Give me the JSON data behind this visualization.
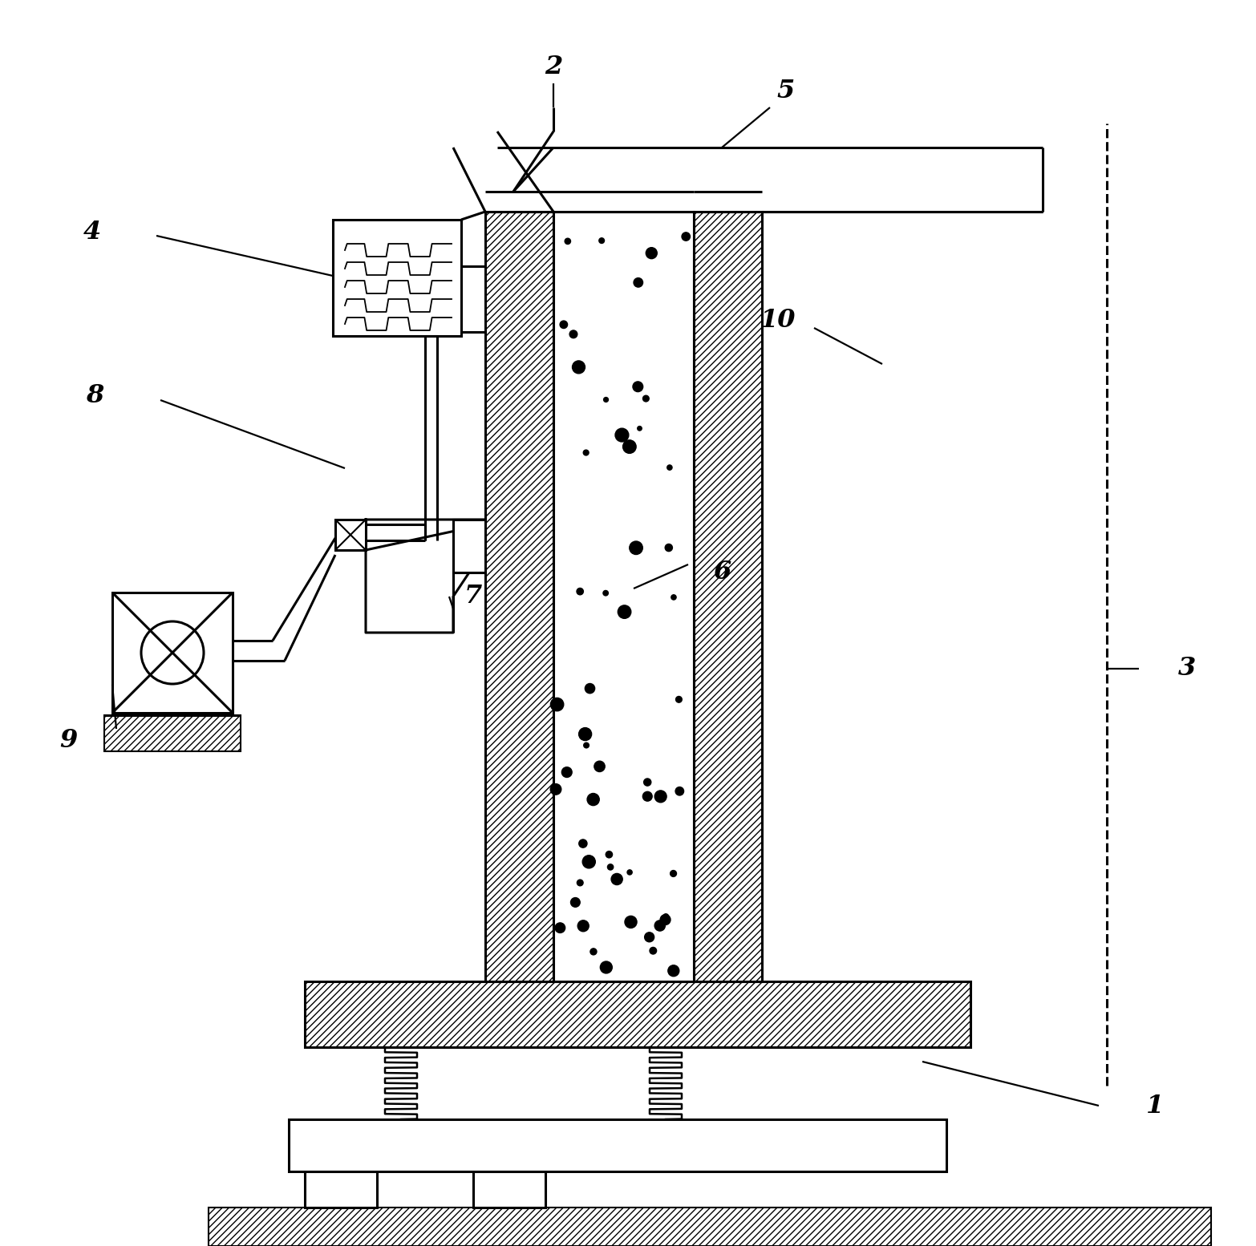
{
  "bg": "#ffffff",
  "lc": "#000000",
  "lw": 2.2,
  "lw_thin": 1.5,
  "fig_w": 15.66,
  "fig_h": 15.54,
  "xlim": [
    0,
    1.566
  ],
  "ylim": [
    0,
    1.554
  ]
}
